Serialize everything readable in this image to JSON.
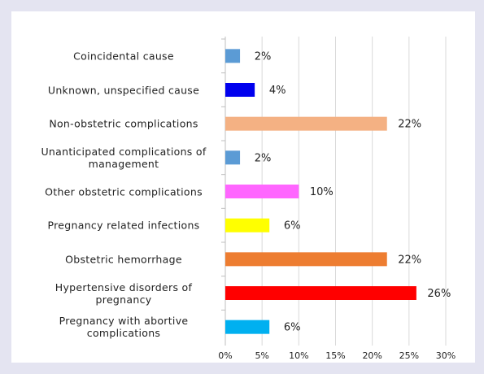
{
  "chart_data": {
    "type": "barh",
    "categories": [
      "Coincidental cause",
      "Unknown, unspecified cause",
      "Non-obstetric complications",
      "Unanticipated complications of management",
      "Other obstetric complications",
      "Pregnancy related infections",
      "Obstetric hemorrhage",
      "Hypertensive disorders of pregnancy",
      "Pregnancy with abortive complications"
    ],
    "values": [
      2,
      4,
      22,
      2,
      10,
      6,
      22,
      26,
      6
    ],
    "value_labels": [
      "2%",
      "4%",
      "22%",
      "2%",
      "10%",
      "6%",
      "22%",
      "26%",
      "6%"
    ],
    "colors": [
      "#5b9bd5",
      "#0000ee",
      "#f4b183",
      "#5b9bd5",
      "#ff66ff",
      "#ffff00",
      "#ed7d31",
      "#ff0000",
      "#00b0f0"
    ],
    "xlim": [
      0,
      30
    ],
    "xticks": [
      {
        "value": 0,
        "label": "0%"
      },
      {
        "value": 5,
        "label": "5%"
      },
      {
        "value": 10,
        "label": "10%"
      },
      {
        "value": 15,
        "label": "15%"
      },
      {
        "value": 20,
        "label": "20%"
      },
      {
        "value": 25,
        "label": "25%"
      },
      {
        "value": 30,
        "label": "30%"
      }
    ],
    "grid": true
  }
}
